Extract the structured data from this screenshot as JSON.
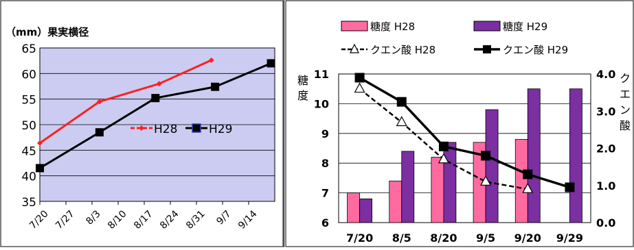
{
  "chart_data": [
    {
      "type": "line",
      "title": "（mm）果実横径",
      "x": [
        "7/20",
        "7/27",
        "8/3",
        "8/10",
        "8/17",
        "8/24",
        "8/31",
        "9/7",
        "9/14"
      ],
      "ylim": [
        35,
        65
      ],
      "yticks": [
        "35",
        "40",
        "45",
        "50",
        "55",
        "60",
        "65"
      ],
      "grid": true,
      "legend_position": "center-right",
      "series": [
        {
          "name": "H28",
          "color": "#ff2020",
          "marker": "diamond",
          "points": [
            {
              "x": "7/20",
              "y": 46.4
            },
            {
              "x": "8/5",
              "y": 54.5
            },
            {
              "x": "8/21",
              "y": 58.0
            },
            {
              "x": "9/4",
              "y": 62.6
            }
          ]
        },
        {
          "name": "H29",
          "color": "#000000",
          "marker": "square",
          "points": [
            {
              "x": "7/20",
              "y": 41.5
            },
            {
              "x": "8/5",
              "y": 48.5
            },
            {
              "x": "8/20",
              "y": 55.2
            },
            {
              "x": "9/5",
              "y": 57.4
            },
            {
              "x": "9/20",
              "y": 62.0
            }
          ]
        }
      ]
    },
    {
      "type": "bar",
      "categories": [
        "7/20",
        "8/5",
        "8/20",
        "9/5",
        "9/20",
        "9/29"
      ],
      "ylabel_left": "糖度",
      "ylabel_right": "クエン酸",
      "ylim_left": [
        6,
        11
      ],
      "ylim_right": [
        0,
        4
      ],
      "yticks_left": [
        "6",
        "7",
        "8",
        "9",
        "10",
        "11"
      ],
      "yticks_right": [
        "0.0",
        "1.0",
        "2.0",
        "3.0",
        "4.0"
      ],
      "legend_position": "top",
      "bar_series": [
        {
          "name": "糖度 H28",
          "color": "#ff6aa0",
          "values": [
            7.0,
            7.4,
            8.2,
            8.7,
            8.8,
            null
          ]
        },
        {
          "name": "糖度 H29",
          "color": "#7b2fa0",
          "values": [
            6.8,
            8.4,
            8.7,
            9.8,
            10.5,
            10.5
          ]
        }
      ],
      "line_series": [
        {
          "name": "クエン酸 H28",
          "style": "dashed",
          "marker": "triangle",
          "values": [
            3.6,
            2.7,
            1.7,
            1.1,
            0.9,
            null
          ]
        },
        {
          "name": "クエン酸 H29",
          "style": "solid",
          "marker": "square",
          "values": [
            3.9,
            3.25,
            2.05,
            1.8,
            1.3,
            0.95
          ]
        }
      ]
    }
  ]
}
